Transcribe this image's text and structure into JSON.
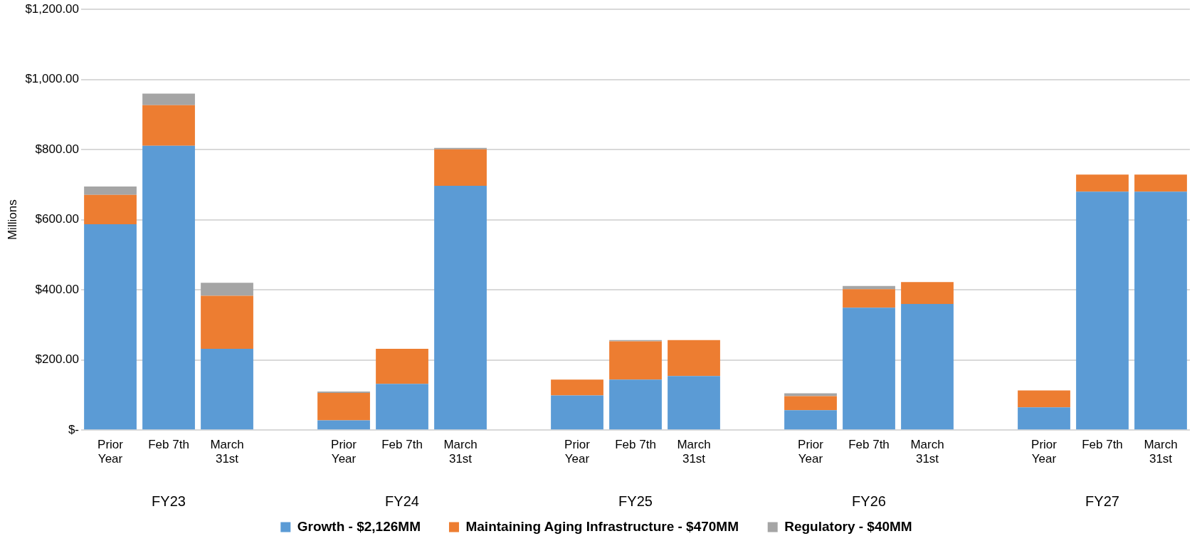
{
  "chart_data": {
    "type": "bar",
    "stacked": true,
    "categories": [
      "Prior Year",
      "Feb 7th",
      "March 31st",
      "Prior Year",
      "Feb 7th",
      "March 31st",
      "Prior Year",
      "Feb 7th",
      "March 31st",
      "Prior Year",
      "Feb 7th",
      "March 31st",
      "Prior Year",
      "Feb 7th",
      "March 31st"
    ],
    "annotations": [
      "FY23",
      "FY24",
      "FY25",
      "FY26",
      "FY27"
    ],
    "series": [
      {
        "name": "Growth - $2,126MM",
        "color": "#5b9bd5",
        "values": [
          587,
          811,
          232,
          28,
          132,
          697,
          99,
          144,
          154,
          57,
          349,
          360,
          65,
          680,
          680
        ]
      },
      {
        "name": "Maintaining Aging Infrastructure - $470MM",
        "color": "#ed7d31",
        "values": [
          84,
          116,
          151,
          78,
          100,
          104,
          45,
          109,
          103,
          40,
          53,
          62,
          48,
          49,
          49
        ]
      },
      {
        "name": "Regulatory - $40MM",
        "color": "#a5a5a5",
        "values": [
          24,
          33,
          37,
          4,
          0,
          4,
          0,
          4,
          0,
          8,
          9,
          0,
          0,
          0,
          0
        ]
      }
    ],
    "ylabel": "Millions",
    "ylim": [
      0,
      1200
    ],
    "yticks": [
      {
        "value": 0,
        "label": "$-"
      },
      {
        "value": 200,
        "label": "$200.00"
      },
      {
        "value": 400,
        "label": "$400.00"
      },
      {
        "value": 600,
        "label": "$600.00"
      },
      {
        "value": 800,
        "label": "$800.00"
      },
      {
        "value": 1000,
        "label": "$1,000.00"
      },
      {
        "value": 1200,
        "label": "$1,200.00"
      }
    ],
    "grid": "y",
    "legend": "bottom"
  }
}
